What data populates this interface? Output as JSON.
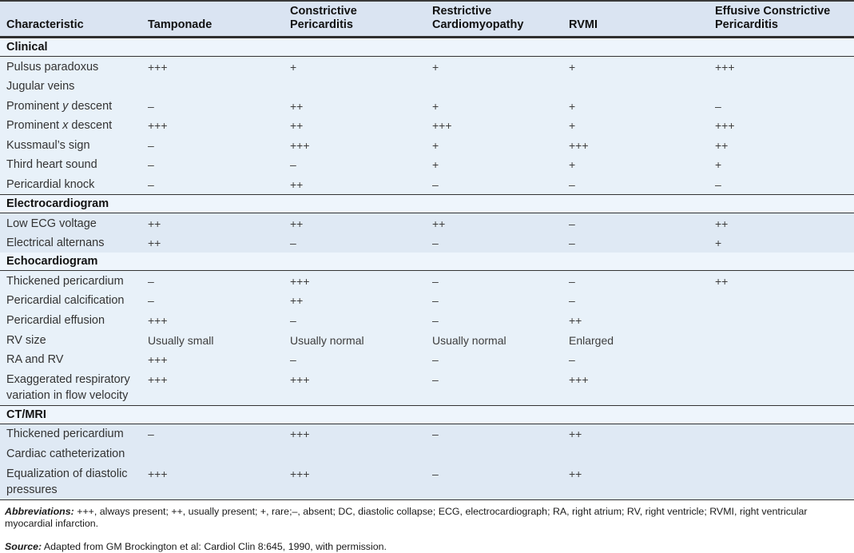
{
  "table": {
    "header": {
      "columns": [
        {
          "lines": [
            "Characteristic"
          ]
        },
        {
          "lines": [
            "Tamponade"
          ]
        },
        {
          "lines": [
            "Constrictive",
            "Pericarditis"
          ]
        },
        {
          "lines": [
            "Restrictive",
            "Cardiomyopathy"
          ]
        },
        {
          "lines": [
            "RVMI"
          ]
        },
        {
          "lines": [
            "Effusive Constrictive",
            "Pericarditis"
          ]
        }
      ]
    },
    "sections": [
      {
        "title": "Clinical",
        "rows": [
          {
            "label": "Pulsus paradoxus",
            "values": [
              "+++",
              "+",
              "+",
              "+",
              "+++"
            ]
          },
          {
            "label": "Jugular veins",
            "values": [
              "",
              "",
              "",
              "",
              ""
            ]
          },
          {
            "label": "Prominent y descent",
            "em": "y",
            "values": [
              "–",
              "++",
              "+",
              "+",
              "–"
            ]
          },
          {
            "label": "Prominent x descent",
            "em": "x",
            "values": [
              "+++",
              "++",
              "+++",
              "+",
              "+++"
            ]
          },
          {
            "label": "Kussmaul’s sign",
            "values": [
              "–",
              "+++",
              "+",
              "+++",
              "++"
            ]
          },
          {
            "label": "Third heart sound",
            "values": [
              "–",
              "–",
              "+",
              "+",
              "+"
            ]
          },
          {
            "label": "Pericardial knock",
            "values": [
              "–",
              "++",
              "–",
              "–",
              "–"
            ]
          }
        ]
      },
      {
        "title": "Electrocardiogram",
        "rows": [
          {
            "label": "Low ECG voltage",
            "values": [
              "++",
              "++",
              "++",
              "–",
              "++"
            ]
          },
          {
            "label": "Electrical alternans",
            "values": [
              "++",
              "–",
              "–",
              "–",
              "+"
            ]
          }
        ]
      },
      {
        "title": "Echocardiogram",
        "rows": [
          {
            "label": "Thickened pericardium",
            "values": [
              "–",
              "+++",
              "–",
              "–",
              "++"
            ]
          },
          {
            "label": "Pericardial calcification",
            "values": [
              "–",
              "++",
              "–",
              "–",
              ""
            ]
          },
          {
            "label": "Pericardial effusion",
            "values": [
              "+++",
              "–",
              "–",
              "++",
              ""
            ]
          },
          {
            "label": "RV size",
            "values": [
              "Usually small",
              "Usually normal",
              "Usually normal",
              "Enlarged",
              ""
            ]
          },
          {
            "label": "RA and RV",
            "values": [
              "+++",
              "–",
              "–",
              "–",
              ""
            ]
          },
          {
            "label": "Exaggerated respiratory variation in flow velocity",
            "values": [
              "+++",
              "+++",
              "–",
              "+++",
              ""
            ]
          }
        ]
      },
      {
        "title": "CT/MRI",
        "rows": [
          {
            "label": "Thickened pericardium",
            "values": [
              "–",
              "+++",
              "–",
              "++",
              ""
            ]
          },
          {
            "label": "Cardiac catheterization",
            "values": [
              "",
              "",
              "",
              "",
              ""
            ]
          },
          {
            "label": "Equalization of diastolic pressures",
            "values": [
              "+++",
              "+++",
              "–",
              "++",
              ""
            ]
          }
        ]
      }
    ]
  },
  "footnotes": {
    "abbreviations_label": "Abbreviations:",
    "abbreviations_text": "+++, always present; ++, usually present; +, rare;–, absent; DC, diastolic collapse; ECG, electrocardiograph; RA, right atrium; RV, right ventricle; RVMI, right ventricular myocardial infarction.",
    "source_label": "Source:",
    "source_text": "Adapted from GM Brockington et al: Cardiol Clin 8:645, 1990, with permission."
  },
  "colors": {
    "header_bg": "#dae4f2",
    "section_header_bg": "#eef5fc",
    "band_light": "#e8f1f9",
    "band_dark": "#dfe9f4",
    "rule": "#333333"
  }
}
